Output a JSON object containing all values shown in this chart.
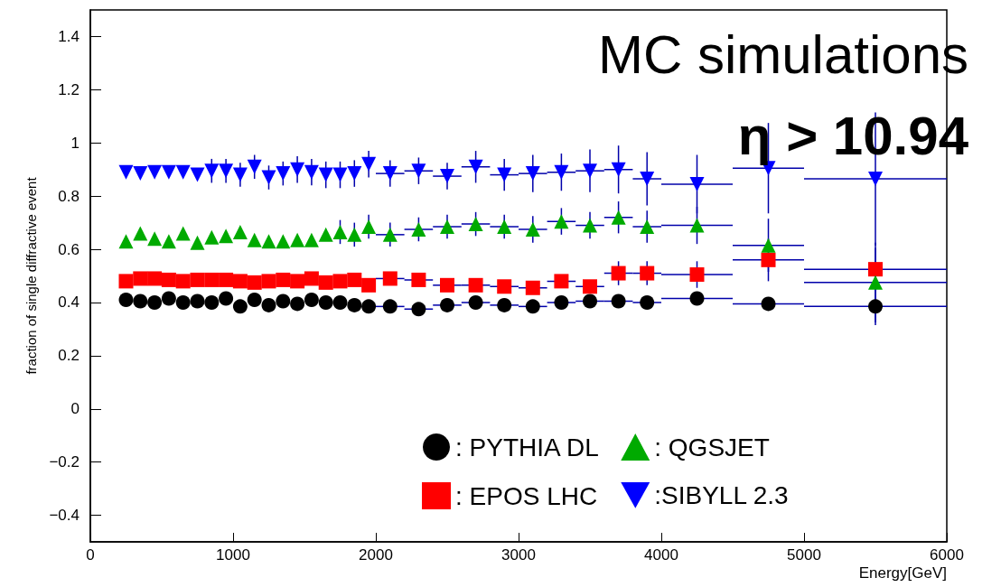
{
  "chart_data": {
    "type": "scatter",
    "xlabel": "Energy[GeV]",
    "ylabel": "fraction of single diffractive event",
    "annotations": [
      "MC simulations",
      "η > 10.94"
    ],
    "x": [
      250,
      350,
      450,
      550,
      650,
      750,
      850,
      950,
      1050,
      1150,
      1250,
      1350,
      1450,
      1550,
      1650,
      1750,
      1850,
      1950,
      2100,
      2300,
      2500,
      2700,
      2900,
      3100,
      3300,
      3500,
      3700,
      3900,
      4250,
      4750,
      5500
    ],
    "series": [
      {
        "name": ": PYTHIA DL",
        "color": "#000000",
        "marker": "circle",
        "values": [
          0.41,
          0.405,
          0.4,
          0.415,
          0.4,
          0.405,
          0.4,
          0.415,
          0.385,
          0.41,
          0.39,
          0.405,
          0.395,
          0.41,
          0.4,
          0.4,
          0.39,
          0.385,
          0.385,
          0.375,
          0.39,
          0.4,
          0.39,
          0.385,
          0.4,
          0.405,
          0.405,
          0.4,
          0.415,
          0.395,
          0.385
        ],
        "errors": [
          null,
          null,
          null,
          null,
          null,
          null,
          null,
          null,
          null,
          null,
          null,
          null,
          null,
          null,
          null,
          null,
          null,
          null,
          null,
          null,
          null,
          null,
          null,
          null,
          null,
          null,
          null,
          null,
          null,
          null,
          0.07
        ],
        "xerrors": [
          null,
          null,
          null,
          null,
          null,
          null,
          null,
          null,
          null,
          null,
          null,
          null,
          null,
          null,
          null,
          null,
          null,
          null,
          100,
          100,
          100,
          100,
          100,
          100,
          100,
          100,
          100,
          100,
          250,
          250,
          500
        ]
      },
      {
        "name": ": EPOS LHC",
        "color": "#ff0000",
        "marker": "square",
        "values": [
          0.48,
          0.49,
          0.49,
          0.485,
          0.48,
          0.485,
          0.485,
          0.485,
          0.48,
          0.475,
          0.48,
          0.485,
          0.48,
          0.49,
          0.475,
          0.48,
          0.485,
          0.465,
          0.49,
          0.485,
          0.465,
          0.465,
          0.46,
          0.455,
          0.48,
          0.46,
          0.51,
          0.51,
          0.505,
          0.56,
          0.525
        ],
        "errors": [
          null,
          null,
          null,
          null,
          null,
          null,
          null,
          null,
          null,
          null,
          null,
          null,
          null,
          null,
          null,
          null,
          null,
          null,
          null,
          null,
          null,
          null,
          null,
          null,
          null,
          null,
          0.045,
          0.045,
          0.05,
          0.08,
          0.08
        ],
        "xerrors": [
          null,
          null,
          null,
          null,
          null,
          null,
          null,
          null,
          null,
          null,
          null,
          null,
          null,
          null,
          null,
          null,
          null,
          null,
          100,
          100,
          100,
          100,
          100,
          100,
          100,
          100,
          100,
          100,
          250,
          250,
          500
        ]
      },
      {
        "name": ": QGSJET",
        "color": "#00aa00",
        "marker": "triangle",
        "values": [
          0.63,
          0.66,
          0.64,
          0.63,
          0.66,
          0.625,
          0.645,
          0.65,
          0.665,
          0.635,
          0.63,
          0.63,
          0.635,
          0.635,
          0.655,
          0.665,
          0.655,
          0.685,
          0.655,
          0.675,
          0.685,
          0.695,
          0.685,
          0.675,
          0.705,
          0.69,
          0.72,
          0.685,
          0.69,
          0.615,
          0.475
        ],
        "errors": [
          null,
          null,
          null,
          null,
          null,
          null,
          null,
          null,
          null,
          null,
          null,
          null,
          null,
          null,
          null,
          0.045,
          0.045,
          0.045,
          0.045,
          0.045,
          0.045,
          0.045,
          0.045,
          0.05,
          0.05,
          0.05,
          0.06,
          0.06,
          0.07,
          0.1,
          0.15
        ],
        "xerrors": [
          null,
          null,
          null,
          null,
          null,
          null,
          null,
          null,
          null,
          null,
          null,
          null,
          null,
          null,
          null,
          null,
          null,
          null,
          100,
          100,
          100,
          100,
          100,
          100,
          100,
          100,
          100,
          100,
          250,
          250,
          500
        ]
      },
      {
        "name": ":SIBYLL 2.3",
        "color": "#0000ff",
        "marker": "triangle-down",
        "values": [
          0.89,
          0.885,
          0.89,
          0.89,
          0.89,
          0.88,
          0.895,
          0.895,
          0.88,
          0.91,
          0.87,
          0.885,
          0.9,
          0.89,
          0.88,
          0.88,
          0.885,
          0.92,
          0.885,
          0.895,
          0.875,
          0.91,
          0.88,
          0.885,
          0.89,
          0.895,
          0.9,
          0.865,
          0.845,
          0.905,
          0.865
        ],
        "errors": [
          null,
          null,
          null,
          null,
          null,
          null,
          0.045,
          0.045,
          0.045,
          0.045,
          0.045,
          0.045,
          0.05,
          0.05,
          0.05,
          0.05,
          0.05,
          0.05,
          0.05,
          0.05,
          0.05,
          0.06,
          0.06,
          0.07,
          0.07,
          0.08,
          0.09,
          0.1,
          0.11,
          0.17,
          0.25
        ],
        "xerrors": [
          null,
          null,
          null,
          null,
          null,
          null,
          null,
          null,
          null,
          null,
          null,
          null,
          null,
          null,
          null,
          null,
          null,
          null,
          100,
          100,
          100,
          100,
          100,
          100,
          100,
          100,
          100,
          100,
          250,
          250,
          500
        ]
      }
    ],
    "xlim": [
      0,
      6000
    ],
    "xticks": [
      0,
      1000,
      2000,
      3000,
      4000,
      5000,
      6000
    ],
    "ylim": [
      -0.5,
      1.5
    ],
    "yticks": [
      {
        "value": -0.4,
        "label": "−0.4"
      },
      {
        "value": -0.2,
        "label": "−0.2"
      },
      0,
      0.2,
      0.4,
      0.6,
      0.8,
      1,
      1.2,
      1.4
    ],
    "legend": "bottom right",
    "grid": false
  }
}
